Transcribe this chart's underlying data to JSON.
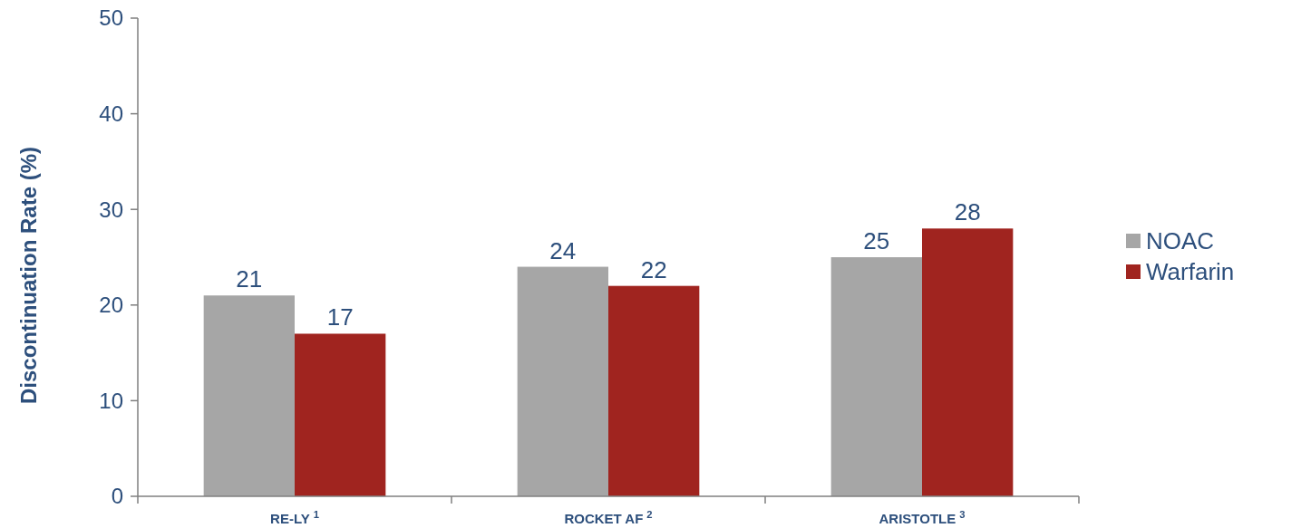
{
  "chart_data": {
    "type": "bar",
    "ylabel": "Discontinuation Rate (%)",
    "categories": [
      "RE-LY$^{1}$",
      "ROCKET AF$^{2}$",
      "ARISTOTLE$^{3}$"
    ],
    "series": [
      {
        "name": "NOAC",
        "color": "#a6a6a6",
        "values": [
          21,
          24,
          25
        ]
      },
      {
        "name": "Warfarin",
        "color": "#a0241f",
        "values": [
          17,
          22,
          28
        ]
      }
    ],
    "ylim": [
      0,
      50
    ],
    "yticks": [
      0,
      10,
      20,
      30,
      40,
      50
    ],
    "data_labels": true,
    "legend": "right",
    "grid": false
  }
}
